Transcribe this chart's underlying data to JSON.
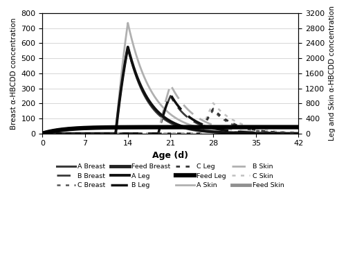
{
  "xlabel": "Age (d)",
  "ylabel_left": "Breast α-HBCDD concentration",
  "ylabel_right": "Leg and Skin α-HBCDD concentration",
  "xlim": [
    0,
    42
  ],
  "ylim_left": [
    0,
    800
  ],
  "ylim_right": [
    0,
    3200
  ],
  "xticks": [
    0,
    7,
    14,
    21,
    28,
    35,
    42
  ],
  "yticks_left": [
    0,
    100,
    200,
    300,
    400,
    500,
    600,
    700,
    800
  ],
  "yticks_right": [
    0,
    400,
    800,
    1200,
    1600,
    2000,
    2400,
    2800,
    3200
  ],
  "figsize": [
    5.0,
    3.97
  ],
  "dpi": 100,
  "peaks": {
    "A_breast": 575,
    "A_leg": 2300,
    "A_skin": 2940,
    "B_breast": 250,
    "B_leg": 1040,
    "B_skin": 1300,
    "C_breast": 155,
    "C_leg": 660,
    "C_skin": 810,
    "Feed_breast": 42,
    "Feed_leg": 170,
    "Feed_skin": 170
  },
  "ke": {
    "breast": 0.3,
    "leg": 0.28,
    "skin": 0.25
  }
}
